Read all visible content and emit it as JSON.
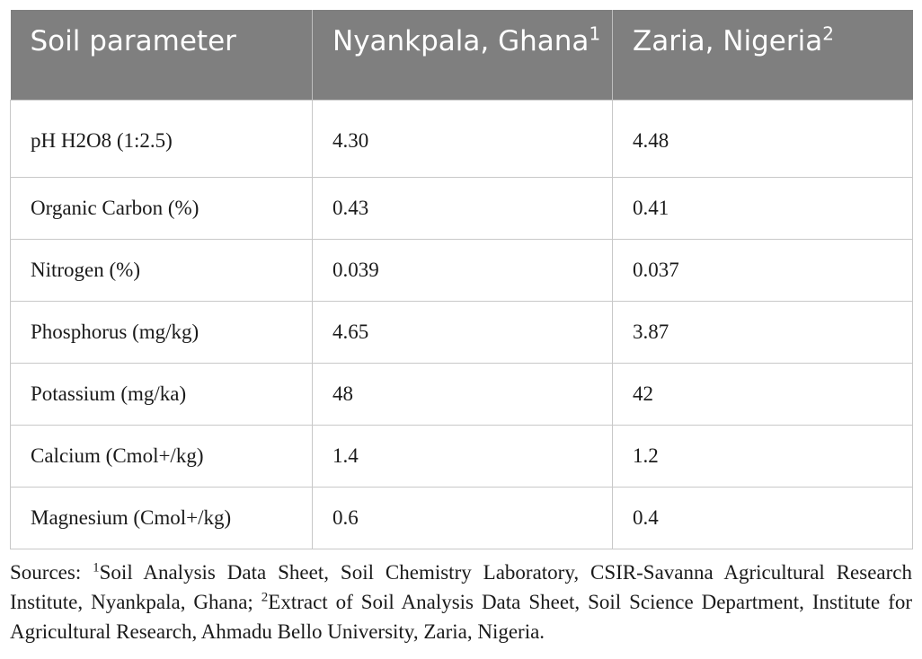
{
  "table": {
    "headers": [
      {
        "text": "Soil parameter",
        "sup": ""
      },
      {
        "text": "Nyankpala, Ghana",
        "sup": "1"
      },
      {
        "text": "Zaria, Nigeria",
        "sup": "2"
      }
    ],
    "rows": [
      [
        "pH H2O8 (1:2.5)",
        "4.30",
        "4.48"
      ],
      [
        "Organic Carbon (%)",
        "0.43",
        "0.41"
      ],
      [
        "Nitrogen (%)",
        "0.039",
        "0.037"
      ],
      [
        "Phosphorus (mg/kg)",
        "4.65",
        "3.87"
      ],
      [
        "Potassium (mg/ka)",
        "48",
        "42"
      ],
      [
        "Calcium (Cmol+/kg)",
        "1.4",
        "1.2"
      ],
      [
        "Magnesium (Cmol+/kg)",
        "0.6",
        "0.4"
      ]
    ]
  },
  "sources": {
    "prefix": "Sources: ",
    "sup1": "1",
    "text1": "Soil Analysis Data Sheet, Soil Chemistry Laboratory, CSIR-Savanna Agricultural Research Institute, Nyankpala, Ghana; ",
    "sup2": "2",
    "text2": "Extract of Soil Analysis Data Sheet, Soil Science Department, Institute for Agricultural Research, Ahmadu Bello University, Zaria, Nigeria."
  }
}
